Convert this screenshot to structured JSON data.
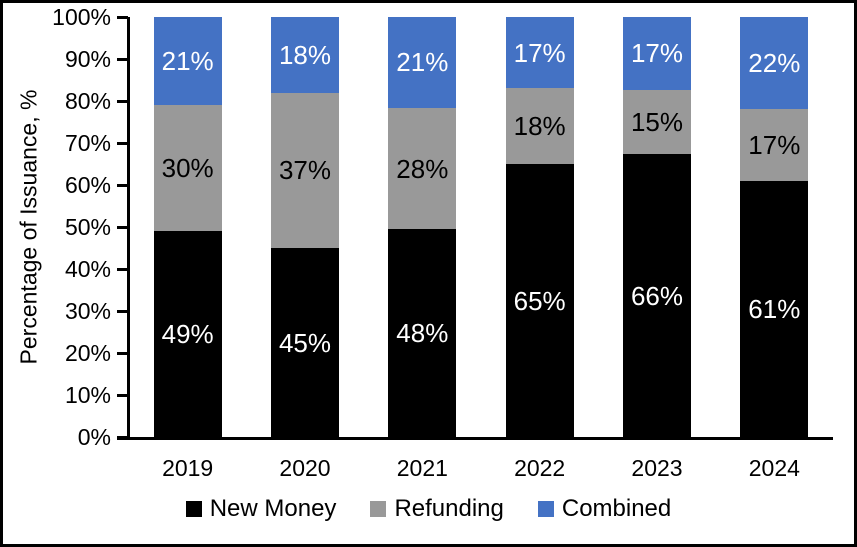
{
  "chart_data": {
    "type": "bar",
    "stacked": true,
    "percent_stacked": true,
    "title": "",
    "xlabel": "",
    "ylabel": "Percentage of Issuance, %",
    "ylim": [
      0,
      100
    ],
    "grid": false,
    "legend_position": "bottom",
    "data_label_suffix": "%",
    "categories": [
      "2019",
      "2020",
      "2021",
      "2022",
      "2023",
      "2024"
    ],
    "yticks": [
      "0%",
      "10%",
      "20%",
      "30%",
      "40%",
      "50%",
      "60%",
      "70%",
      "80%",
      "90%",
      "100%"
    ],
    "series": [
      {
        "name": "New Money",
        "color": "#000000",
        "label_color": "#FFFFFF",
        "values": [
          49,
          45,
          48,
          65,
          66,
          61
        ]
      },
      {
        "name": "Refunding",
        "color": "#999999",
        "label_color": "#000000",
        "values": [
          30,
          37,
          28,
          18,
          15,
          17
        ]
      },
      {
        "name": "Combined",
        "color": "#4472C4",
        "label_color": "#FFFFFF",
        "values": [
          21,
          18,
          21,
          17,
          17,
          22
        ]
      }
    ]
  }
}
